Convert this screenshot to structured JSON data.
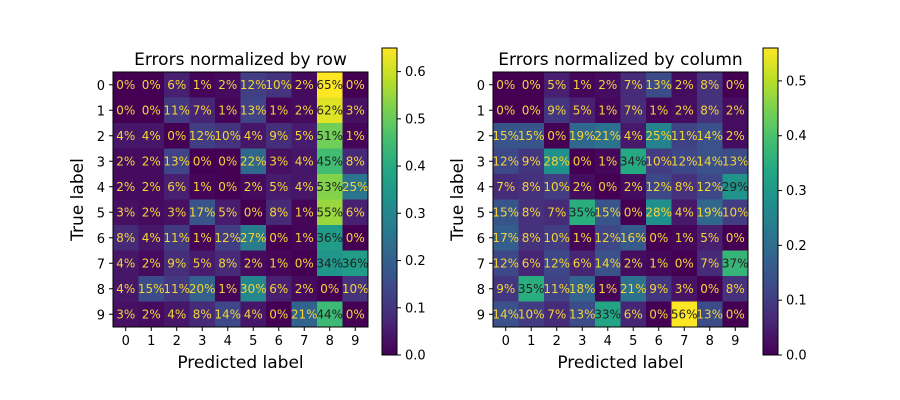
{
  "chart_data": [
    {
      "type": "heatmap",
      "title": "Errors normalized by row",
      "xlabel": "Predicted label",
      "ylabel": "True label",
      "x_ticks": [
        "0",
        "1",
        "2",
        "3",
        "4",
        "5",
        "6",
        "7",
        "8",
        "9"
      ],
      "y_ticks": [
        "0",
        "1",
        "2",
        "3",
        "4",
        "5",
        "6",
        "7",
        "8",
        "9"
      ],
      "values": [
        [
          0,
          0,
          6,
          1,
          2,
          12,
          10,
          2,
          65,
          0
        ],
        [
          0,
          0,
          11,
          7,
          1,
          13,
          1,
          2,
          62,
          3
        ],
        [
          4,
          4,
          0,
          12,
          10,
          4,
          9,
          5,
          51,
          1
        ],
        [
          2,
          2,
          13,
          0,
          0,
          22,
          3,
          4,
          45,
          8
        ],
        [
          2,
          2,
          6,
          1,
          0,
          2,
          5,
          4,
          53,
          25
        ],
        [
          3,
          2,
          3,
          17,
          5,
          0,
          8,
          1,
          55,
          6
        ],
        [
          8,
          4,
          11,
          1,
          12,
          27,
          0,
          1,
          36,
          0
        ],
        [
          4,
          2,
          9,
          5,
          8,
          2,
          1,
          0,
          34,
          36
        ],
        [
          4,
          15,
          11,
          20,
          1,
          30,
          6,
          2,
          0,
          10
        ],
        [
          3,
          2,
          4,
          8,
          14,
          4,
          0,
          21,
          44,
          0
        ]
      ],
      "cell_labels": [
        [
          "0%",
          "0%",
          "6%",
          "1%",
          "2%",
          "12%",
          "10%",
          "2%",
          "65%",
          "0%"
        ],
        [
          "0%",
          "0%",
          "11%",
          "7%",
          "1%",
          "13%",
          "1%",
          "2%",
          "62%",
          "3%"
        ],
        [
          "4%",
          "4%",
          "0%",
          "12%",
          "10%",
          "4%",
          "9%",
          "5%",
          "51%",
          "1%"
        ],
        [
          "2%",
          "2%",
          "13%",
          "0%",
          "0%",
          "22%",
          "3%",
          "4%",
          "45%",
          "8%"
        ],
        [
          "2%",
          "2%",
          "6%",
          "1%",
          "0%",
          "2%",
          "5%",
          "4%",
          "53%",
          "25%"
        ],
        [
          "3%",
          "2%",
          "3%",
          "17%",
          "5%",
          "0%",
          "8%",
          "1%",
          "55%",
          "6%"
        ],
        [
          "8%",
          "4%",
          "11%",
          "1%",
          "12%",
          "27%",
          "0%",
          "1%",
          "36%",
          "0%"
        ],
        [
          "4%",
          "2%",
          "9%",
          "5%",
          "8%",
          "2%",
          "1%",
          "0%",
          "34%",
          "36%"
        ],
        [
          "4%",
          "15%",
          "11%",
          "20%",
          "1%",
          "30%",
          "6%",
          "2%",
          "0%",
          "10%"
        ],
        [
          "3%",
          "2%",
          "4%",
          "8%",
          "14%",
          "4%",
          "0%",
          "21%",
          "44%",
          "0%"
        ]
      ],
      "colorbar": {
        "min": 0,
        "max": 0.65,
        "ticks": [
          "0.0",
          "0.1",
          "0.2",
          "0.3",
          "0.4",
          "0.5",
          "0.6"
        ],
        "colormap": "viridis"
      }
    },
    {
      "type": "heatmap",
      "title": "Errors normalized by column",
      "xlabel": "Predicted label",
      "ylabel": "True label",
      "x_ticks": [
        "0",
        "1",
        "2",
        "3",
        "4",
        "5",
        "6",
        "7",
        "8",
        "9"
      ],
      "y_ticks": [
        "0",
        "1",
        "2",
        "3",
        "4",
        "5",
        "6",
        "7",
        "8",
        "9"
      ],
      "values": [
        [
          0,
          0,
          5,
          1,
          2,
          7,
          13,
          2,
          8,
          0
        ],
        [
          0,
          0,
          9,
          5,
          1,
          7,
          1,
          2,
          8,
          2
        ],
        [
          15,
          15,
          0,
          19,
          21,
          4,
          25,
          11,
          14,
          2
        ],
        [
          12,
          9,
          28,
          0,
          1,
          34,
          10,
          12,
          14,
          13
        ],
        [
          7,
          8,
          10,
          2,
          0,
          2,
          12,
          8,
          12,
          29
        ],
        [
          15,
          8,
          7,
          35,
          15,
          0,
          28,
          4,
          19,
          10
        ],
        [
          17,
          8,
          10,
          1,
          12,
          16,
          0,
          1,
          5,
          0
        ],
        [
          12,
          6,
          12,
          6,
          14,
          2,
          1,
          0,
          7,
          37
        ],
        [
          9,
          35,
          11,
          18,
          1,
          21,
          9,
          3,
          0,
          8
        ],
        [
          14,
          10,
          7,
          13,
          33,
          6,
          0,
          56,
          13,
          0
        ]
      ],
      "cell_labels": [
        [
          "0%",
          "0%",
          "5%",
          "1%",
          "2%",
          "7%",
          "13%",
          "2%",
          "8%",
          "0%"
        ],
        [
          "0%",
          "0%",
          "9%",
          "5%",
          "1%",
          "7%",
          "1%",
          "2%",
          "8%",
          "2%"
        ],
        [
          "15%",
          "15%",
          "0%",
          "19%",
          "21%",
          "4%",
          "25%",
          "11%",
          "14%",
          "2%"
        ],
        [
          "12%",
          "9%",
          "28%",
          "0%",
          "1%",
          "34%",
          "10%",
          "12%",
          "14%",
          "13%"
        ],
        [
          "7%",
          "8%",
          "10%",
          "2%",
          "0%",
          "2%",
          "12%",
          "8%",
          "12%",
          "29%"
        ],
        [
          "15%",
          "8%",
          "7%",
          "35%",
          "15%",
          "0%",
          "28%",
          "4%",
          "19%",
          "10%"
        ],
        [
          "17%",
          "8%",
          "10%",
          "1%",
          "12%",
          "16%",
          "0%",
          "1%",
          "5%",
          "0%"
        ],
        [
          "12%",
          "6%",
          "12%",
          "6%",
          "14%",
          "2%",
          "1%",
          "0%",
          "7%",
          "37%"
        ],
        [
          "9%",
          "35%",
          "11%",
          "18%",
          "1%",
          "21%",
          "9%",
          "3%",
          "0%",
          "8%"
        ],
        [
          "14%",
          "10%",
          "7%",
          "13%",
          "33%",
          "6%",
          "0%",
          "56%",
          "13%",
          "0%"
        ]
      ],
      "colorbar": {
        "min": 0,
        "max": 0.56,
        "ticks": [
          "0.0",
          "0.1",
          "0.2",
          "0.3",
          "0.4",
          "0.5"
        ],
        "colormap": "viridis"
      }
    }
  ]
}
